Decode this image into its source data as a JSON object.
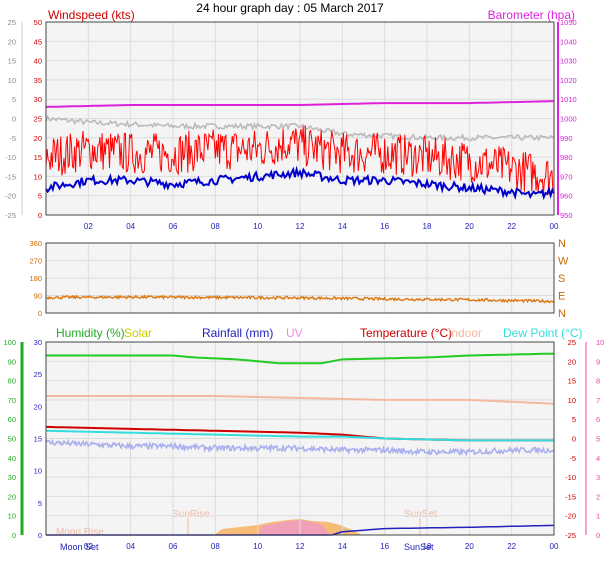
{
  "title": "24 hour graph day : 05 March 2017",
  "x_ticks": [
    "02",
    "04",
    "06",
    "08",
    "10",
    "12",
    "14",
    "16",
    "18",
    "20",
    "22",
    "00"
  ],
  "colors": {
    "wind_avg": "#0000cc",
    "wind_gust": "#ff0000",
    "barometer": "#dd22dd",
    "baro_grey": "#bbbbbb",
    "direction": "#dd7711",
    "humidity": "#22cc22",
    "solar": "#cccc00",
    "rainfall": "#2222bb",
    "uv": "#ee88ee",
    "temperature": "#cc0000",
    "indoor": "#f4b8a0",
    "dewpoint": "#33dddd",
    "temp_band": "#aab0ee",
    "axis_green": "#22aa22",
    "axis_pink": "#ee44aa"
  },
  "chart_data": [
    {
      "type": "line",
      "left_label": "Windspeed (kts)",
      "right_label": "Barometer (hpa)",
      "outer_left_ticks": [
        "25",
        "20",
        "15",
        "10",
        "5",
        "0",
        "-5",
        "-10",
        "-15",
        "-20",
        "-25"
      ],
      "left_ticks": [
        "50",
        "45",
        "40",
        "35",
        "30",
        "25",
        "20",
        "15",
        "10",
        "5",
        "0"
      ],
      "right_ticks": [
        "1050",
        "1040",
        "1030",
        "1020",
        "1010",
        "1000",
        "990",
        "980",
        "970",
        "960",
        "950"
      ],
      "left_ylim": [
        0,
        50
      ],
      "right_ylim": [
        950,
        1050
      ],
      "series": [
        {
          "key": "barometer",
          "axis": "right",
          "x": [
            0,
            4,
            8,
            12,
            16,
            20,
            24
          ],
          "values": [
            1006,
            1007,
            1007,
            1007,
            1008,
            1008,
            1009
          ]
        },
        {
          "key": "baro_grey",
          "axis": "outer",
          "x": [
            0,
            2,
            6,
            10,
            12,
            14,
            18,
            22,
            24
          ],
          "values": [
            0,
            -1,
            -2,
            -2,
            -2,
            -4,
            -5,
            -5,
            -5
          ]
        },
        {
          "key": "wind_gust",
          "axis": "left",
          "x": [
            0,
            2,
            4,
            6,
            8,
            10,
            11.5,
            12,
            14,
            16,
            18,
            20,
            22,
            24
          ],
          "values": [
            15,
            17,
            16,
            16,
            17,
            17,
            19,
            18,
            16,
            16,
            15,
            14,
            12,
            10
          ]
        },
        {
          "key": "wind_avg",
          "axis": "left",
          "x": [
            0,
            2,
            4,
            6,
            8,
            10,
            12,
            14,
            16,
            18,
            20,
            22,
            23,
            24
          ],
          "values": [
            7,
            9,
            9,
            8,
            9,
            10,
            11,
            9,
            9,
            8,
            7,
            6,
            5,
            6
          ]
        }
      ]
    },
    {
      "type": "line",
      "left_ticks": [
        "360",
        "270",
        "180",
        "90",
        "0"
      ],
      "compass": [
        "N",
        "W",
        "S",
        "E",
        "N"
      ],
      "ylim": [
        0,
        360
      ],
      "series": [
        {
          "key": "direction",
          "x": [
            0,
            4,
            8,
            12,
            16,
            20,
            24
          ],
          "values": [
            80,
            82,
            80,
            78,
            72,
            68,
            60
          ]
        }
      ]
    },
    {
      "type": "line",
      "labels": {
        "humidity": "Humidity (%)",
        "solar": "Solar",
        "rainfall": "Rainfall (mm)",
        "uv": "UV",
        "temperature": "Temperature (°C)",
        "indoor": "Indoor",
        "dewpoint": "Dew Point (°C)"
      },
      "outer_left_ticks": [
        "100",
        "90",
        "80",
        "70",
        "60",
        "50",
        "40",
        "30",
        "20",
        "10",
        "0"
      ],
      "left_ticks": [
        "30",
        "25",
        "20",
        "15",
        "10",
        "5",
        "0"
      ],
      "right_ticks": [
        "25",
        "20",
        "15",
        "10",
        "5",
        "0",
        "-5",
        "-10",
        "-15",
        "-20",
        "-25"
      ],
      "outer_right_ticks": [
        "10",
        "9",
        "8",
        "7",
        "6",
        "5",
        "4",
        "3",
        "2",
        "1",
        "0"
      ],
      "humidity_ylim": [
        0,
        100
      ],
      "temp_ylim": [
        -25,
        25
      ],
      "annotations": [
        "SunRise",
        "SunSet",
        "Moon Set",
        "Moon Rise",
        "SunSet"
      ],
      "series": [
        {
          "key": "humidity",
          "axis": "humidity",
          "x": [
            0,
            6,
            7,
            9,
            10,
            11,
            13,
            14,
            18,
            20,
            24
          ],
          "values": [
            93,
            93,
            92,
            91,
            90,
            89,
            89,
            91,
            92,
            93,
            94
          ]
        },
        {
          "key": "indoor",
          "axis": "temp",
          "x": [
            0,
            8,
            16,
            20,
            24
          ],
          "values": [
            11,
            11,
            10,
            10,
            9
          ]
        },
        {
          "key": "temperature",
          "axis": "temp",
          "x": [
            0,
            4,
            8,
            12,
            14,
            16,
            20,
            24
          ],
          "values": [
            3,
            2.5,
            2,
            1.5,
            1,
            0,
            -0.5,
            -0.5
          ]
        },
        {
          "key": "dewpoint",
          "axis": "temp",
          "x": [
            0,
            4,
            8,
            12,
            14,
            16,
            20,
            24
          ],
          "values": [
            2,
            1.5,
            1,
            0.5,
            0.5,
            0,
            -0.5,
            -0.5
          ]
        },
        {
          "key": "temp_band",
          "axis": "temp",
          "x": [
            0,
            2,
            4,
            6,
            8,
            10,
            12,
            14,
            16,
            18,
            20,
            22,
            24
          ],
          "values": [
            -1,
            -1.5,
            -2,
            -2,
            -2.5,
            -2.5,
            -2.5,
            -3,
            -3,
            -3.5,
            -3.5,
            -3,
            -3
          ]
        },
        {
          "key": "rainfall",
          "axis": "rain",
          "x": [
            0,
            13.5,
            14,
            16,
            20,
            24
          ],
          "values": [
            0,
            0,
            0.5,
            1,
            1.2,
            1.5
          ]
        }
      ]
    }
  ]
}
